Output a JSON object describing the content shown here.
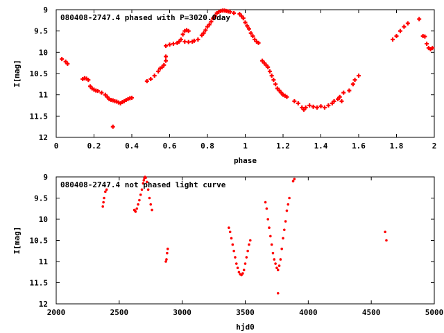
{
  "colors": {
    "series": "#ff0000",
    "axis": "#000000",
    "background": "#ffffff"
  },
  "chart_data": [
    {
      "type": "scatter",
      "title": "080408-2747.4 phased with P=3020.0day",
      "xlabel": "phase",
      "ylabel": "I[mag]",
      "xlim": [
        0,
        2
      ],
      "ylim": [
        12,
        9
      ],
      "y_inverted": true,
      "x_ticks": [
        "0",
        "0.2",
        "0.4",
        "0.6",
        "0.8",
        "1",
        "1.2",
        "1.4",
        "1.6",
        "1.8",
        "2"
      ],
      "y_ticks": [
        "9",
        "9.5",
        "10",
        "10.5",
        "11",
        "11.5",
        "12"
      ],
      "marker": "plus",
      "points": [
        [
          0.03,
          10.16
        ],
        [
          0.05,
          10.22
        ],
        [
          0.06,
          10.27
        ],
        [
          0.14,
          10.63
        ],
        [
          0.15,
          10.61
        ],
        [
          0.16,
          10.62
        ],
        [
          0.17,
          10.65
        ],
        [
          0.18,
          10.8
        ],
        [
          0.19,
          10.85
        ],
        [
          0.2,
          10.88
        ],
        [
          0.21,
          10.9
        ],
        [
          0.22,
          10.91
        ],
        [
          0.24,
          10.95
        ],
        [
          0.26,
          11.0
        ],
        [
          0.27,
          11.05
        ],
        [
          0.28,
          11.1
        ],
        [
          0.29,
          11.12
        ],
        [
          0.3,
          11.13
        ],
        [
          0.31,
          11.15
        ],
        [
          0.32,
          11.16
        ],
        [
          0.33,
          11.18
        ],
        [
          0.34,
          11.2
        ],
        [
          0.35,
          11.17
        ],
        [
          0.36,
          11.15
        ],
        [
          0.37,
          11.12
        ],
        [
          0.38,
          11.1
        ],
        [
          0.39,
          11.08
        ],
        [
          0.4,
          11.07
        ],
        [
          0.3,
          11.75
        ],
        [
          0.48,
          10.68
        ],
        [
          0.5,
          10.63
        ],
        [
          0.52,
          10.55
        ],
        [
          0.54,
          10.45
        ],
        [
          0.55,
          10.38
        ],
        [
          0.56,
          10.35
        ],
        [
          0.57,
          10.3
        ],
        [
          0.58,
          10.2
        ],
        [
          0.58,
          10.1
        ],
        [
          0.58,
          9.85
        ],
        [
          0.6,
          9.82
        ],
        [
          0.62,
          9.8
        ],
        [
          0.64,
          9.78
        ],
        [
          0.65,
          9.75
        ],
        [
          0.66,
          9.7
        ],
        [
          0.67,
          9.58
        ],
        [
          0.68,
          9.5
        ],
        [
          0.69,
          9.48
        ],
        [
          0.7,
          9.5
        ],
        [
          0.68,
          9.75
        ],
        [
          0.7,
          9.76
        ],
        [
          0.72,
          9.75
        ],
        [
          0.73,
          9.73
        ],
        [
          0.75,
          9.7
        ],
        [
          0.77,
          9.6
        ],
        [
          0.78,
          9.55
        ],
        [
          0.79,
          9.48
        ],
        [
          0.8,
          9.4
        ],
        [
          0.81,
          9.35
        ],
        [
          0.82,
          9.28
        ],
        [
          0.83,
          9.2
        ],
        [
          0.84,
          9.15
        ],
        [
          0.85,
          9.08
        ],
        [
          0.86,
          9.05
        ],
        [
          0.87,
          9.03
        ],
        [
          0.88,
          9.02
        ],
        [
          0.89,
          9.02
        ],
        [
          0.9,
          9.03
        ],
        [
          0.91,
          9.04
        ],
        [
          0.92,
          9.05
        ],
        [
          0.94,
          9.08
        ],
        [
          0.97,
          9.1
        ],
        [
          0.98,
          9.15
        ],
        [
          0.99,
          9.2
        ],
        [
          1.0,
          9.3
        ],
        [
          1.01,
          9.38
        ],
        [
          1.02,
          9.45
        ],
        [
          1.03,
          9.55
        ],
        [
          1.04,
          9.62
        ],
        [
          1.05,
          9.7
        ],
        [
          1.06,
          9.75
        ],
        [
          1.07,
          9.78
        ],
        [
          1.09,
          10.2
        ],
        [
          1.1,
          10.25
        ],
        [
          1.11,
          10.3
        ],
        [
          1.12,
          10.35
        ],
        [
          1.13,
          10.45
        ],
        [
          1.14,
          10.55
        ],
        [
          1.15,
          10.65
        ],
        [
          1.16,
          10.75
        ],
        [
          1.17,
          10.85
        ],
        [
          1.18,
          10.9
        ],
        [
          1.19,
          10.95
        ],
        [
          1.2,
          11.0
        ],
        [
          1.21,
          11.02
        ],
        [
          1.22,
          11.05
        ],
        [
          1.26,
          11.15
        ],
        [
          1.28,
          11.2
        ],
        [
          1.3,
          11.3
        ],
        [
          1.31,
          11.35
        ],
        [
          1.32,
          11.3
        ],
        [
          1.34,
          11.25
        ],
        [
          1.36,
          11.28
        ],
        [
          1.38,
          11.3
        ],
        [
          1.4,
          11.27
        ],
        [
          1.42,
          11.3
        ],
        [
          1.44,
          11.25
        ],
        [
          1.46,
          11.2
        ],
        [
          1.47,
          11.15
        ],
        [
          1.49,
          11.1
        ],
        [
          1.5,
          11.05
        ],
        [
          1.51,
          11.15
        ],
        [
          1.52,
          10.95
        ],
        [
          1.55,
          10.9
        ],
        [
          1.57,
          10.75
        ],
        [
          1.58,
          10.65
        ],
        [
          1.6,
          10.55
        ],
        [
          1.78,
          9.7
        ],
        [
          1.8,
          9.62
        ],
        [
          1.82,
          9.5
        ],
        [
          1.84,
          9.4
        ],
        [
          1.86,
          9.32
        ],
        [
          1.92,
          9.22
        ],
        [
          1.94,
          9.62
        ],
        [
          1.95,
          9.63
        ],
        [
          1.96,
          9.8
        ],
        [
          1.97,
          9.9
        ],
        [
          1.98,
          9.93
        ],
        [
          1.99,
          9.9
        ]
      ]
    },
    {
      "type": "scatter",
      "title": "080408-2747.4 not phased light curve",
      "xlabel": "hjd0",
      "ylabel": "I[mag]",
      "xlim": [
        2000,
        5000
      ],
      "ylim": [
        12,
        9
      ],
      "y_inverted": true,
      "x_ticks": [
        "2000",
        "2500",
        "3000",
        "3500",
        "4000",
        "4500",
        "5000"
      ],
      "y_ticks": [
        "9",
        "9.5",
        "10",
        "10.5",
        "11",
        "11.5",
        "12"
      ],
      "marker": "dot",
      "points": [
        [
          2370,
          9.7
        ],
        [
          2375,
          9.6
        ],
        [
          2380,
          9.5
        ],
        [
          2390,
          9.35
        ],
        [
          2400,
          9.3
        ],
        [
          2620,
          9.78
        ],
        [
          2625,
          9.8
        ],
        [
          2630,
          9.82
        ],
        [
          2640,
          9.75
        ],
        [
          2650,
          9.65
        ],
        [
          2660,
          9.55
        ],
        [
          2670,
          9.42
        ],
        [
          2680,
          9.3
        ],
        [
          2690,
          9.15
        ],
        [
          2695,
          9.08
        ],
        [
          2700,
          9.03
        ],
        [
          2705,
          9.0
        ],
        [
          2710,
          9.02
        ],
        [
          2720,
          9.12
        ],
        [
          2730,
          9.3
        ],
        [
          2740,
          9.5
        ],
        [
          2750,
          9.65
        ],
        [
          2760,
          9.78
        ],
        [
          2870,
          11.0
        ],
        [
          2875,
          10.95
        ],
        [
          2880,
          10.8
        ],
        [
          2885,
          10.7
        ],
        [
          3370,
          10.2
        ],
        [
          3380,
          10.3
        ],
        [
          3390,
          10.45
        ],
        [
          3400,
          10.6
        ],
        [
          3410,
          10.75
        ],
        [
          3420,
          10.9
        ],
        [
          3430,
          11.05
        ],
        [
          3440,
          11.15
        ],
        [
          3450,
          11.25
        ],
        [
          3460,
          11.3
        ],
        [
          3470,
          11.32
        ],
        [
          3480,
          11.28
        ],
        [
          3490,
          11.2
        ],
        [
          3500,
          11.05
        ],
        [
          3510,
          10.9
        ],
        [
          3520,
          10.75
        ],
        [
          3530,
          10.6
        ],
        [
          3540,
          10.5
        ],
        [
          3660,
          9.6
        ],
        [
          3670,
          9.75
        ],
        [
          3680,
          10.0
        ],
        [
          3690,
          10.2
        ],
        [
          3700,
          10.4
        ],
        [
          3710,
          10.6
        ],
        [
          3720,
          10.8
        ],
        [
          3730,
          10.95
        ],
        [
          3740,
          11.05
        ],
        [
          3750,
          11.15
        ],
        [
          3760,
          11.2
        ],
        [
          3770,
          11.1
        ],
        [
          3780,
          10.95
        ],
        [
          3790,
          10.7
        ],
        [
          3800,
          10.45
        ],
        [
          3810,
          10.25
        ],
        [
          3820,
          10.05
        ],
        [
          3830,
          9.8
        ],
        [
          3840,
          9.65
        ],
        [
          3850,
          9.5
        ],
        [
          3760,
          11.75
        ],
        [
          3880,
          9.1
        ],
        [
          3890,
          9.05
        ],
        [
          4610,
          10.3
        ],
        [
          4620,
          10.5
        ]
      ]
    }
  ]
}
